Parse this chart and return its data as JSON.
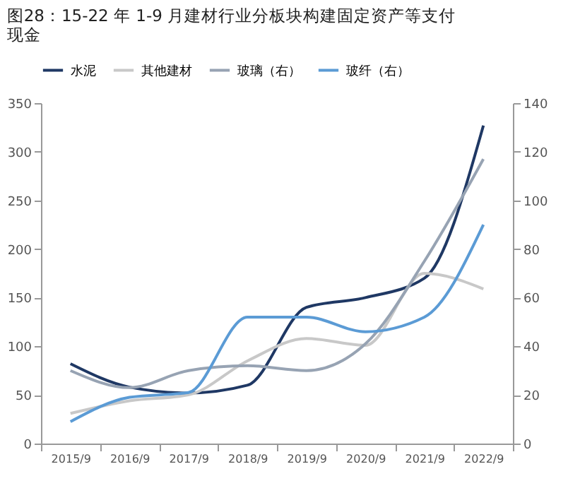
{
  "chart_data": {
    "type": "line",
    "title": [
      "图28：15-22 年 1-9 月建材行业分板块构建固定资产等支付",
      "现金"
    ],
    "categories": [
      "2015/9",
      "2016/9",
      "2017/9",
      "2018/9",
      "2019/9",
      "2020/9",
      "2021/9",
      "2022/9"
    ],
    "series": [
      {
        "name": "水泥",
        "color": "#1f3864",
        "values": [
          82,
          58,
          52,
          60,
          140,
          150,
          170,
          327
        ]
      },
      {
        "name": "其他建材",
        "color": "#c8c8c8",
        "values": [
          31,
          44,
          50,
          85,
          108,
          101,
          175,
          159
        ]
      },
      {
        "name": "玻璃（右）",
        "color": "#97a3b3",
        "axis": "y2",
        "values": [
          30,
          23,
          30,
          32,
          30,
          41,
          75,
          117
        ]
      },
      {
        "name": "玻纤（右）",
        "color": "#5b9bd5",
        "axis": "y2",
        "values": [
          9,
          19,
          21,
          52,
          52,
          46,
          52,
          90
        ]
      }
    ],
    "ylim": [
      0,
      350
    ],
    "yticks": [
      0,
      50,
      100,
      150,
      200,
      250,
      300,
      350
    ],
    "y2lim": [
      0,
      140
    ],
    "y2ticks": [
      0,
      20,
      40,
      60,
      80,
      100,
      120,
      140
    ],
    "grid": false,
    "legend": "top",
    "line_style": "solid",
    "marker": "none"
  }
}
